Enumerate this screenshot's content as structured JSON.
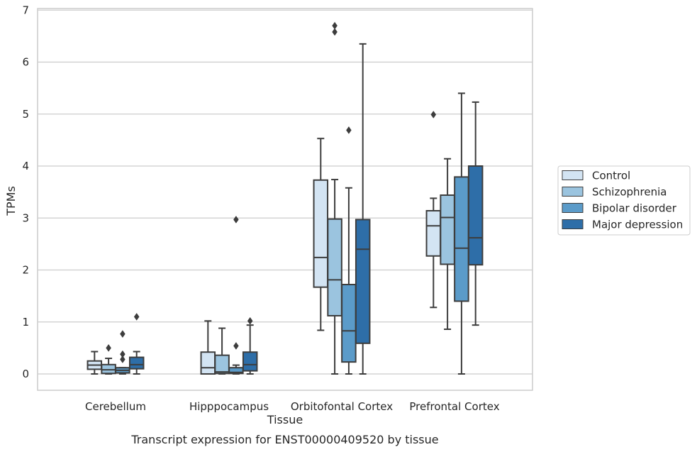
{
  "chart_data": {
    "type": "boxplot",
    "xlabel": "Tissue",
    "ylabel": "TPMs",
    "caption": "Transcript expression for ENST00000409520 by tissue",
    "ylim": [
      -0.3,
      7.05
    ],
    "yticks": [
      "0",
      "1",
      "2",
      "3",
      "4",
      "5",
      "6",
      "7"
    ],
    "grid": "horizontal",
    "legend_position": "right",
    "categories": [
      "Cerebellum",
      "Hipppocampus",
      "Orbitofontal Cortex",
      "Prefrontal Cortex"
    ],
    "series": [
      {
        "name": "Control",
        "color": "#d3e4f3",
        "boxes": [
          {
            "whislo": 0.0,
            "q1": 0.09,
            "med": 0.17,
            "q3": 0.25,
            "whishi": 0.43,
            "fliers": []
          },
          {
            "whislo": 0.0,
            "q1": 0.0,
            "med": 0.12,
            "q3": 0.42,
            "whishi": 1.02,
            "fliers": []
          },
          {
            "whislo": 0.84,
            "q1": 1.67,
            "med": 2.24,
            "q3": 3.73,
            "whishi": 4.53,
            "fliers": []
          },
          {
            "whislo": 1.28,
            "q1": 2.27,
            "med": 2.85,
            "q3": 3.14,
            "whishi": 3.38,
            "fliers": [
              4.99
            ]
          }
        ]
      },
      {
        "name": "Schizophrenia",
        "color": "#9bc4df",
        "boxes": [
          {
            "whislo": 0.0,
            "q1": 0.01,
            "med": 0.08,
            "q3": 0.18,
            "whishi": 0.3,
            "fliers": [
              0.5
            ]
          },
          {
            "whislo": 0.0,
            "q1": 0.01,
            "med": 0.04,
            "q3": 0.36,
            "whishi": 0.88,
            "fliers": []
          },
          {
            "whislo": 0.0,
            "q1": 1.12,
            "med": 1.81,
            "q3": 2.98,
            "whishi": 3.74,
            "fliers": [
              6.58,
              6.7
            ]
          },
          {
            "whislo": 0.86,
            "q1": 2.11,
            "med": 3.01,
            "q3": 3.44,
            "whishi": 4.14,
            "fliers": []
          }
        ]
      },
      {
        "name": "Bipolar disorder",
        "color": "#5b9bc9",
        "boxes": [
          {
            "whislo": 0.0,
            "q1": 0.02,
            "med": 0.07,
            "q3": 0.12,
            "whishi": 0.12,
            "fliers": [
              0.28,
              0.38,
              0.77
            ]
          },
          {
            "whislo": 0.0,
            "q1": 0.01,
            "med": 0.03,
            "q3": 0.12,
            "whishi": 0.17,
            "fliers": [
              0.54,
              2.97
            ]
          },
          {
            "whislo": 0.0,
            "q1": 0.23,
            "med": 0.83,
            "q3": 1.72,
            "whishi": 3.58,
            "fliers": [
              4.69
            ]
          },
          {
            "whislo": 0.0,
            "q1": 1.4,
            "med": 2.42,
            "q3": 3.79,
            "whishi": 5.4,
            "fliers": []
          }
        ]
      },
      {
        "name": "Major depression",
        "color": "#2e6ea8",
        "boxes": [
          {
            "whislo": 0.0,
            "q1": 0.1,
            "med": 0.18,
            "q3": 0.32,
            "whishi": 0.43,
            "fliers": [
              1.1
            ]
          },
          {
            "whislo": 0.0,
            "q1": 0.06,
            "med": 0.18,
            "q3": 0.42,
            "whishi": 0.94,
            "fliers": [
              1.02
            ]
          },
          {
            "whislo": 0.0,
            "q1": 0.59,
            "med": 2.4,
            "q3": 2.97,
            "whishi": 6.35,
            "fliers": []
          },
          {
            "whislo": 0.94,
            "q1": 2.1,
            "med": 2.62,
            "q3": 4.0,
            "whishi": 5.23,
            "fliers": []
          }
        ]
      }
    ]
  }
}
